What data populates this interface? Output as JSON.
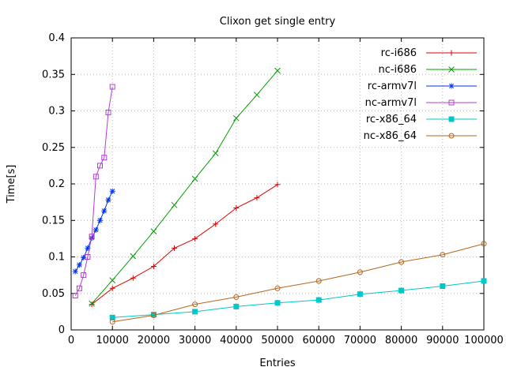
{
  "chart_data": {
    "type": "line",
    "title": "Clixon get single entry",
    "xlabel": "Entries",
    "ylabel": "Time[s]",
    "xlim": [
      0,
      100000
    ],
    "ylim": [
      0,
      0.4
    ],
    "grid": true,
    "legend_position": "top-right-inside",
    "xticks": [
      0,
      10000,
      20000,
      30000,
      40000,
      50000,
      60000,
      70000,
      80000,
      90000,
      100000
    ],
    "xtick_labels": [
      "0",
      "10000",
      "20000",
      "30000",
      "40000",
      "50000",
      "60000",
      "70000",
      "80000",
      "90000",
      "100000"
    ],
    "yticks": [
      0,
      0.05,
      0.1,
      0.15,
      0.2,
      0.25,
      0.3,
      0.35,
      0.4
    ],
    "ytick_labels": [
      "0",
      "0.05",
      "0.1",
      "0.15",
      "0.2",
      "0.25",
      "0.3",
      "0.35",
      "0.4"
    ],
    "grid_color": "#b8b8b8",
    "series": [
      {
        "name": "rc-i686",
        "color": "#e00000",
        "marker": "plus",
        "x": [
          5000,
          10000,
          15000,
          20000,
          25000,
          30000,
          35000,
          40000,
          45000,
          50000
        ],
        "y": [
          0.035,
          0.057,
          0.071,
          0.087,
          0.112,
          0.125,
          0.145,
          0.167,
          0.181,
          0.199
        ]
      },
      {
        "name": "nc-i686",
        "color": "#00a000",
        "marker": "cross",
        "x": [
          5000,
          10000,
          15000,
          20000,
          25000,
          30000,
          35000,
          40000,
          45000,
          50000
        ],
        "y": [
          0.036,
          0.068,
          0.101,
          0.135,
          0.171,
          0.207,
          0.242,
          0.29,
          0.322,
          0.355
        ]
      },
      {
        "name": "rc-armv7l",
        "color": "#0033ee",
        "marker": "asterisk",
        "x": [
          1000,
          2000,
          3000,
          4000,
          5000,
          6000,
          7000,
          8000,
          9000,
          10000
        ],
        "y": [
          0.08,
          0.089,
          0.099,
          0.112,
          0.126,
          0.137,
          0.15,
          0.163,
          0.178,
          0.19
        ]
      },
      {
        "name": "nc-armv7l",
        "color": "#b03fd0",
        "marker": "square-open",
        "x": [
          1000,
          2000,
          3000,
          4000,
          5000,
          6000,
          7000,
          8000,
          9000,
          10000
        ],
        "y": [
          0.047,
          0.057,
          0.075,
          0.1,
          0.128,
          0.21,
          0.225,
          0.236,
          0.298,
          0.333
        ]
      },
      {
        "name": "rc-x86_64",
        "color": "#00c8c8",
        "marker": "square-filled",
        "x": [
          10000,
          20000,
          30000,
          40000,
          50000,
          60000,
          70000,
          80000,
          90000,
          100000
        ],
        "y": [
          0.017,
          0.021,
          0.025,
          0.032,
          0.037,
          0.041,
          0.049,
          0.054,
          0.06,
          0.067
        ]
      },
      {
        "name": "nc-x86_64",
        "color": "#b5651d",
        "marker": "circle-open",
        "x": [
          10000,
          20000,
          30000,
          40000,
          50000,
          60000,
          70000,
          80000,
          90000,
          100000
        ],
        "y": [
          0.011,
          0.02,
          0.035,
          0.045,
          0.057,
          0.067,
          0.079,
          0.093,
          0.103,
          0.118
        ]
      }
    ]
  }
}
